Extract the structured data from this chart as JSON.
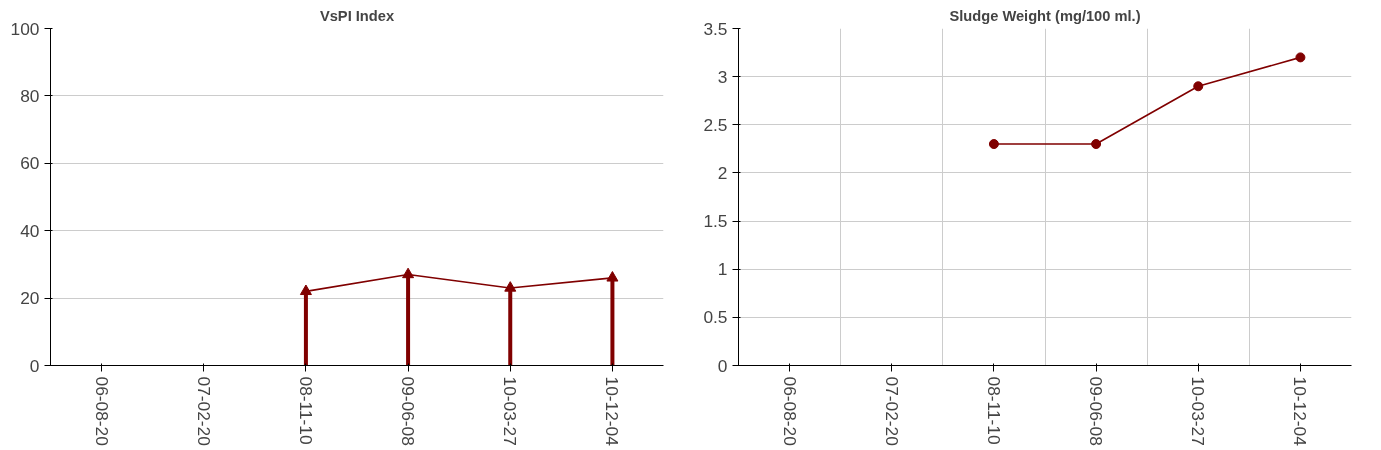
{
  "chart_data": [
    {
      "type": "line",
      "title": "VsPI Index",
      "categories": [
        "06-08-20",
        "07-02-20",
        "08-11-10",
        "09-06-08",
        "10-03-27",
        "10-12-04"
      ],
      "series": [
        {
          "type": "lollipop",
          "color": "#800000",
          "marker": "triangle",
          "values": [
            null,
            null,
            22,
            27,
            23,
            26
          ]
        },
        {
          "color": "#800000",
          "values": [
            null,
            null,
            22,
            27,
            23,
            26
          ]
        }
      ],
      "ylim": [
        0,
        100
      ],
      "yticks": [
        0,
        20,
        40,
        60,
        80,
        100
      ],
      "grid": "y"
    },
    {
      "type": "line",
      "title": "Sludge Weight (mg/100 ml.)",
      "categories": [
        "06-08-20",
        "07-02-20",
        "08-11-10",
        "09-06-08",
        "10-03-27",
        "10-12-04"
      ],
      "series": [
        {
          "color": "#800000",
          "values": [
            null,
            null,
            2.3,
            2.3,
            2.9,
            3.2
          ]
        }
      ],
      "marker": "circle",
      "ylim": [
        0,
        3.5
      ],
      "yticks": [
        0,
        {
          "value": 0.5,
          "label": "0.5"
        },
        1,
        {
          "value": 1.5,
          "label": "1.5"
        },
        2,
        {
          "value": 2.5,
          "label": "2.5"
        },
        3,
        {
          "value": 3.5,
          "label": "3.5"
        }
      ],
      "grid": true
    }
  ]
}
